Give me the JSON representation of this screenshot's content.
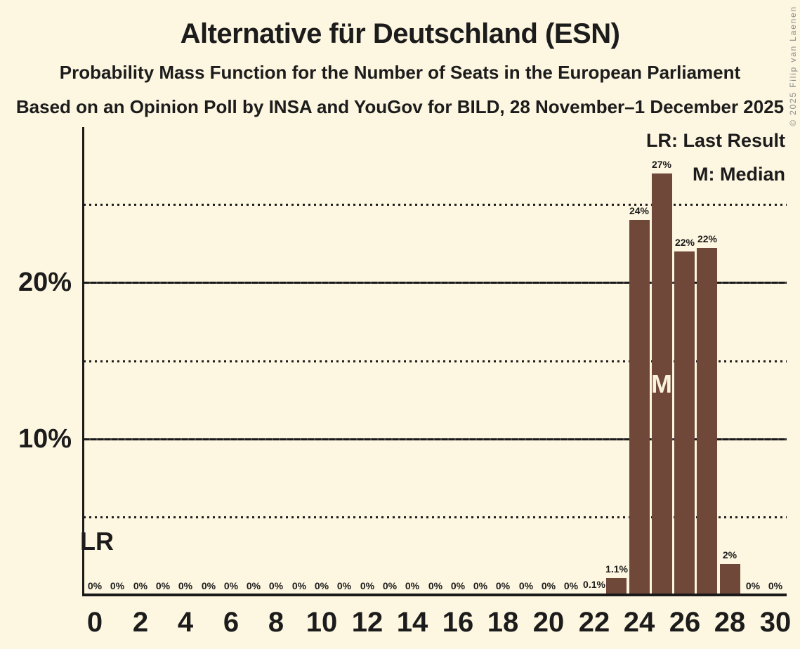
{
  "colors": {
    "background": "#FDF6E0",
    "bar": "#6F483A",
    "text": "#1C1C1C",
    "axis": "#1A1A1A",
    "copyright": "#8C8C8C",
    "median_text": "#FAF3DC"
  },
  "chart_data": {
    "type": "bar",
    "title": "Alternative für Deutschland (ESN)",
    "subtitle": "Probability Mass Function for the Number of Seats in the European Parliament",
    "source_line": "Based on an Opinion Poll by INSA and YouGov for BILD, 28 November–1 December 2025",
    "copyright": "© 2025 Filip van Laenen",
    "legend": [
      {
        "key": "LR",
        "label": "LR: Last Result"
      },
      {
        "key": "M",
        "label": "M: Median"
      }
    ],
    "xlabel": "",
    "ylabel": "",
    "ylim": [
      0,
      30
    ],
    "grid": {
      "dotted_at_percent": [
        5,
        15,
        25
      ],
      "solid_at_percent": [
        10,
        20
      ]
    },
    "x": [
      0,
      1,
      2,
      3,
      4,
      5,
      6,
      7,
      8,
      9,
      10,
      11,
      12,
      13,
      14,
      15,
      16,
      17,
      18,
      19,
      20,
      21,
      22,
      23,
      24,
      25,
      26,
      27,
      28,
      29,
      30
    ],
    "values": [
      0,
      0,
      0,
      0,
      0,
      0,
      0,
      0,
      0,
      0,
      0,
      0,
      0,
      0,
      0,
      0,
      0,
      0,
      0,
      0,
      0,
      0,
      0.1,
      1.1,
      24,
      27,
      22,
      22.2,
      2,
      0,
      0
    ],
    "bar_labels": [
      "0%",
      "0%",
      "0%",
      "0%",
      "0%",
      "0%",
      "0%",
      "0%",
      "0%",
      "0%",
      "0%",
      "0%",
      "0%",
      "0%",
      "0%",
      "0%",
      "0%",
      "0%",
      "0%",
      "0%",
      "0%",
      "0%",
      "0.1%",
      "1.1%",
      "24%",
      "27%",
      "22%",
      "22%",
      "2%",
      "0%",
      "0%"
    ],
    "xticks": [
      0,
      2,
      4,
      6,
      8,
      10,
      12,
      14,
      16,
      18,
      20,
      22,
      24,
      26,
      28,
      30
    ],
    "yticks": [
      {
        "value": 10,
        "label": "10%"
      },
      {
        "value": 20,
        "label": "20%"
      }
    ],
    "annotations": [
      {
        "text": "LR",
        "seat": 0,
        "meaning": "Last Result"
      },
      {
        "text": "M",
        "seat": 25,
        "meaning": "Median"
      }
    ]
  }
}
